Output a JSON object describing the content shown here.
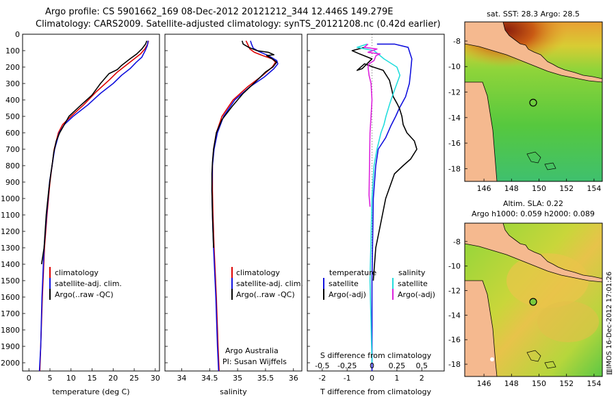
{
  "title": {
    "line1": "Argo profile: CS 5901662_169 08-Dec-2012 20121212_344 12.446S 149.279E",
    "line2": "Climatology: CARS2009. Satellite-adjusted climatology: synTS_20121208.nc (0.42d earlier)"
  },
  "colors": {
    "clim": "#dd0000",
    "sat": "#1010dd",
    "argo": "#000000",
    "sal_sat": "#22dddd",
    "sal_argo": "#dd22dd",
    "land": "#f5b98f"
  },
  "depth_ticks": [
    0,
    100,
    200,
    300,
    400,
    500,
    600,
    700,
    800,
    900,
    1000,
    1100,
    1200,
    1300,
    1400,
    1500,
    1600,
    1700,
    1800,
    1900,
    2000
  ],
  "panels": {
    "temperature": {
      "xlabel": "temperature (deg C)",
      "xticks": [
        "0",
        "5",
        "10",
        "15",
        "20",
        "25",
        "30"
      ],
      "xrange": [
        -1.5,
        31
      ],
      "legend": [
        "climatology",
        "satellite-adj. clim.",
        "Argo(..raw -QC)"
      ],
      "series": {
        "clim": [
          [
            2.6,
            2050
          ],
          [
            2.8,
            1900
          ],
          [
            3.2,
            1600
          ],
          [
            3.7,
            1300
          ],
          [
            4.3,
            1100
          ],
          [
            5.0,
            900
          ],
          [
            5.5,
            800
          ],
          [
            6.0,
            700
          ],
          [
            7.0,
            600
          ],
          [
            8.0,
            550
          ],
          [
            10,
            500
          ],
          [
            13,
            430
          ],
          [
            16,
            350
          ],
          [
            19,
            280
          ],
          [
            21,
            230
          ],
          [
            23,
            190
          ],
          [
            25,
            150
          ],
          [
            26.5,
            120
          ],
          [
            27.5,
            90
          ],
          [
            28.2,
            60
          ],
          [
            28.4,
            40
          ]
        ],
        "sat": [
          [
            2.5,
            2050
          ],
          [
            2.8,
            1900
          ],
          [
            3.1,
            1600
          ],
          [
            3.6,
            1300
          ],
          [
            4.2,
            1100
          ],
          [
            4.9,
            900
          ],
          [
            5.5,
            800
          ],
          [
            6.1,
            700
          ],
          [
            7.2,
            600
          ],
          [
            8.4,
            550
          ],
          [
            10.5,
            500
          ],
          [
            14,
            430
          ],
          [
            17,
            360
          ],
          [
            20,
            300
          ],
          [
            22,
            250
          ],
          [
            24,
            210
          ],
          [
            25.5,
            170
          ],
          [
            26.8,
            140
          ],
          [
            27.6,
            100
          ],
          [
            28.1,
            70
          ],
          [
            28.3,
            40
          ]
        ],
        "argo": [
          [
            3.0,
            1400
          ],
          [
            3.6,
            1300
          ],
          [
            4.1,
            1100
          ],
          [
            4.7,
            950
          ],
          [
            5.2,
            850
          ],
          [
            5.6,
            780
          ],
          [
            5.9,
            720
          ],
          [
            6.5,
            650
          ],
          [
            7.3,
            600
          ],
          [
            8.2,
            560
          ],
          [
            9.5,
            500
          ],
          [
            12,
            440
          ],
          [
            15,
            370
          ],
          [
            17,
            300
          ],
          [
            19,
            240
          ],
          [
            21,
            215
          ],
          [
            22,
            190
          ],
          [
            24,
            150
          ],
          [
            25.6,
            120
          ],
          [
            26.8,
            90
          ],
          [
            27.7,
            60
          ],
          [
            28.0,
            40
          ]
        ]
      }
    },
    "salinity": {
      "xlabel": "salinity",
      "xticks": [
        "34",
        "34.5",
        "35",
        "35.5",
        "36"
      ],
      "xrange": [
        33.7,
        36.15
      ],
      "legend": [
        "climatology",
        "satellite-adj. clim.",
        "Argo(..raw -QC)"
      ],
      "note1": "Argo Australia",
      "note2": "PI: Susan Wijffels",
      "series": {
        "clim": [
          [
            34.67,
            2050
          ],
          [
            34.65,
            1900
          ],
          [
            34.62,
            1600
          ],
          [
            34.58,
            1300
          ],
          [
            34.56,
            1100
          ],
          [
            34.55,
            950
          ],
          [
            34.55,
            800
          ],
          [
            34.57,
            700
          ],
          [
            34.62,
            600
          ],
          [
            34.72,
            500
          ],
          [
            34.92,
            400
          ],
          [
            35.18,
            320
          ],
          [
            35.45,
            250
          ],
          [
            35.62,
            200
          ],
          [
            35.68,
            170
          ],
          [
            35.62,
            150
          ],
          [
            35.45,
            130
          ],
          [
            35.3,
            110
          ],
          [
            35.22,
            90
          ],
          [
            35.18,
            60
          ],
          [
            35.15,
            40
          ]
        ],
        "sat": [
          [
            34.66,
            2050
          ],
          [
            34.64,
            1900
          ],
          [
            34.61,
            1600
          ],
          [
            34.57,
            1300
          ],
          [
            34.55,
            1100
          ],
          [
            34.54,
            950
          ],
          [
            34.55,
            800
          ],
          [
            34.58,
            700
          ],
          [
            34.64,
            600
          ],
          [
            34.75,
            500
          ],
          [
            34.95,
            400
          ],
          [
            35.22,
            320
          ],
          [
            35.48,
            260
          ],
          [
            35.65,
            210
          ],
          [
            35.72,
            180
          ],
          [
            35.7,
            160
          ],
          [
            35.55,
            130
          ],
          [
            35.38,
            105
          ],
          [
            35.28,
            85
          ],
          [
            35.25,
            60
          ],
          [
            35.23,
            40
          ]
        ],
        "argo": [
          [
            34.57,
            1300
          ],
          [
            34.55,
            1100
          ],
          [
            34.54,
            950
          ],
          [
            34.54,
            850
          ],
          [
            34.55,
            780
          ],
          [
            34.57,
            700
          ],
          [
            34.62,
            600
          ],
          [
            34.72,
            520
          ],
          [
            34.9,
            440
          ],
          [
            35.1,
            360
          ],
          [
            35.32,
            290
          ],
          [
            35.5,
            230
          ],
          [
            35.63,
            200
          ],
          [
            35.7,
            170
          ],
          [
            35.62,
            150
          ],
          [
            35.52,
            130
          ],
          [
            35.65,
            125
          ],
          [
            35.55,
            110
          ],
          [
            35.35,
            100
          ],
          [
            35.2,
            80
          ],
          [
            35.1,
            60
          ],
          [
            35.08,
            40
          ]
        ]
      }
    },
    "difference": {
      "xlabel": "T difference from climatology",
      "xticks": [
        "-2",
        "-1",
        "0",
        "1",
        "2"
      ],
      "xrange": [
        -2.6,
        2.9
      ],
      "sticks_label": "S difference from climatology",
      "sticks": [
        "-0.5",
        "-0.25",
        "0",
        "0.25",
        "0.5"
      ],
      "legend_t_header": "temperature",
      "legend_s_header": "salinity",
      "legend_t": [
        "satellite",
        "Argo(-adj)"
      ],
      "legend_s": [
        "satellite",
        "Argo(-adj)"
      ],
      "series": {
        "t_sat": [
          [
            0,
            2050
          ],
          [
            0.0,
            1500
          ],
          [
            0.05,
            1000
          ],
          [
            0.15,
            800
          ],
          [
            0.25,
            700
          ],
          [
            0.55,
            630
          ],
          [
            0.75,
            560
          ],
          [
            0.95,
            500
          ],
          [
            1.1,
            450
          ],
          [
            1.35,
            380
          ],
          [
            1.5,
            300
          ],
          [
            1.55,
            230
          ],
          [
            1.6,
            150
          ],
          [
            1.45,
            80
          ],
          [
            0.9,
            60
          ],
          [
            0.2,
            60
          ]
        ],
        "t_argo": [
          [
            0.05,
            1500
          ],
          [
            0.15,
            1300
          ],
          [
            0.35,
            1150
          ],
          [
            0.55,
            1000
          ],
          [
            0.9,
            850
          ],
          [
            1.25,
            800
          ],
          [
            1.55,
            760
          ],
          [
            1.8,
            700
          ],
          [
            1.7,
            650
          ],
          [
            1.4,
            600
          ],
          [
            1.25,
            550
          ],
          [
            1.2,
            500
          ],
          [
            1.1,
            450
          ],
          [
            1.0,
            420
          ],
          [
            0.85,
            380
          ],
          [
            0.8,
            340
          ],
          [
            0.7,
            280
          ],
          [
            0.45,
            220
          ],
          [
            0.05,
            200
          ],
          [
            -0.3,
            180
          ],
          [
            -0.6,
            220
          ],
          [
            -0.4,
            210
          ],
          [
            -0.2,
            180
          ],
          [
            0.0,
            150
          ],
          [
            -0.5,
            120
          ],
          [
            -0.8,
            100
          ],
          [
            -0.3,
            80
          ]
        ],
        "s_sat": [
          [
            0.0,
            2000
          ],
          [
            -0.02,
            1500
          ],
          [
            0,
            1000
          ],
          [
            0.02,
            800
          ],
          [
            0.05,
            700
          ],
          [
            0.09,
            600
          ],
          [
            0.12,
            550
          ],
          [
            0.14,
            500
          ],
          [
            0.18,
            420
          ],
          [
            0.22,
            350
          ],
          [
            0.25,
            300
          ],
          [
            0.28,
            250
          ],
          [
            0.25,
            200
          ],
          [
            0.12,
            150
          ],
          [
            0.02,
            100
          ],
          [
            -0.15,
            80
          ],
          [
            -0.05,
            60
          ]
        ],
        "s_argo": [
          [
            -0.02,
            1050
          ],
          [
            -0.03,
            980
          ],
          [
            -0.02,
            600
          ],
          [
            -0.01,
            500
          ],
          [
            0.0,
            400
          ],
          [
            -0.01,
            300
          ],
          [
            -0.03,
            250
          ],
          [
            -0.04,
            200
          ],
          [
            -0.03,
            180
          ],
          [
            0.02,
            160
          ],
          [
            0.04,
            130
          ],
          [
            0.08,
            120
          ],
          [
            -0.04,
            110
          ],
          [
            0.05,
            90
          ],
          [
            -0.08,
            80
          ],
          [
            -0.04,
            60
          ]
        ]
      }
    }
  },
  "maps": {
    "sst": {
      "title": "sat. SST: 28.3 Argo: 28.5",
      "yticks": [
        "-8",
        "-10",
        "-12",
        "-14",
        "-16",
        "-18"
      ],
      "xticks": [
        "146",
        "148",
        "150",
        "152",
        "154"
      ]
    },
    "sla": {
      "title1": "Altim. SLA: 0.22",
      "title2": "Argo h1000: 0.059 h2000: 0.089",
      "yticks": [
        "-8",
        "-10",
        "-12",
        "-14",
        "-16",
        "-18"
      ],
      "xticks": [
        "146",
        "148",
        "150",
        "152",
        "154"
      ]
    }
  },
  "stamp": "IMOS 16-Dec-2012 17:01:26"
}
